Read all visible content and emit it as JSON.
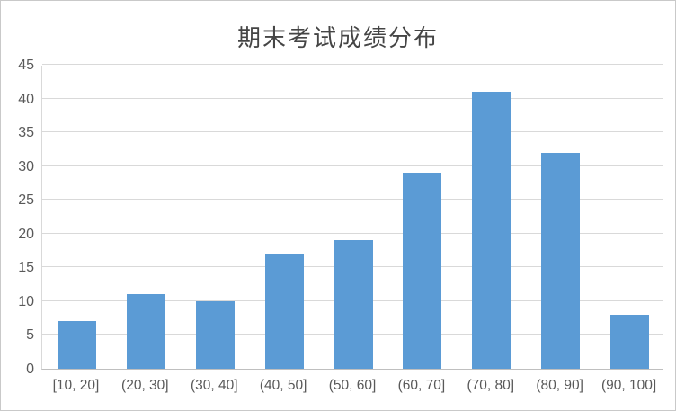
{
  "window": {
    "background": "#ffffff",
    "border_color": "#c9c9c9"
  },
  "chart_data": {
    "type": "bar",
    "title": "期末考试成绩分布",
    "categories": [
      "[10, 20]",
      "(20, 30]",
      "(30, 40]",
      "(40, 50]",
      "(50, 60]",
      "(60, 70]",
      "(70, 80]",
      "(80, 90]",
      "(90, 100]"
    ],
    "values": [
      7,
      11,
      10,
      17,
      19,
      29,
      41,
      32,
      8
    ],
    "xlabel": "",
    "ylabel": "",
    "ylim": [
      0,
      45
    ],
    "yticks": [
      0,
      5,
      10,
      15,
      20,
      25,
      30,
      35,
      40,
      45
    ],
    "grid": true,
    "legend": false,
    "bar_color": "#5b9bd5",
    "gridline_color": "#d9d9d9",
    "axis_line_color": "#bfbfbf",
    "tick_label_color": "#595959",
    "title_color": "#454545"
  }
}
